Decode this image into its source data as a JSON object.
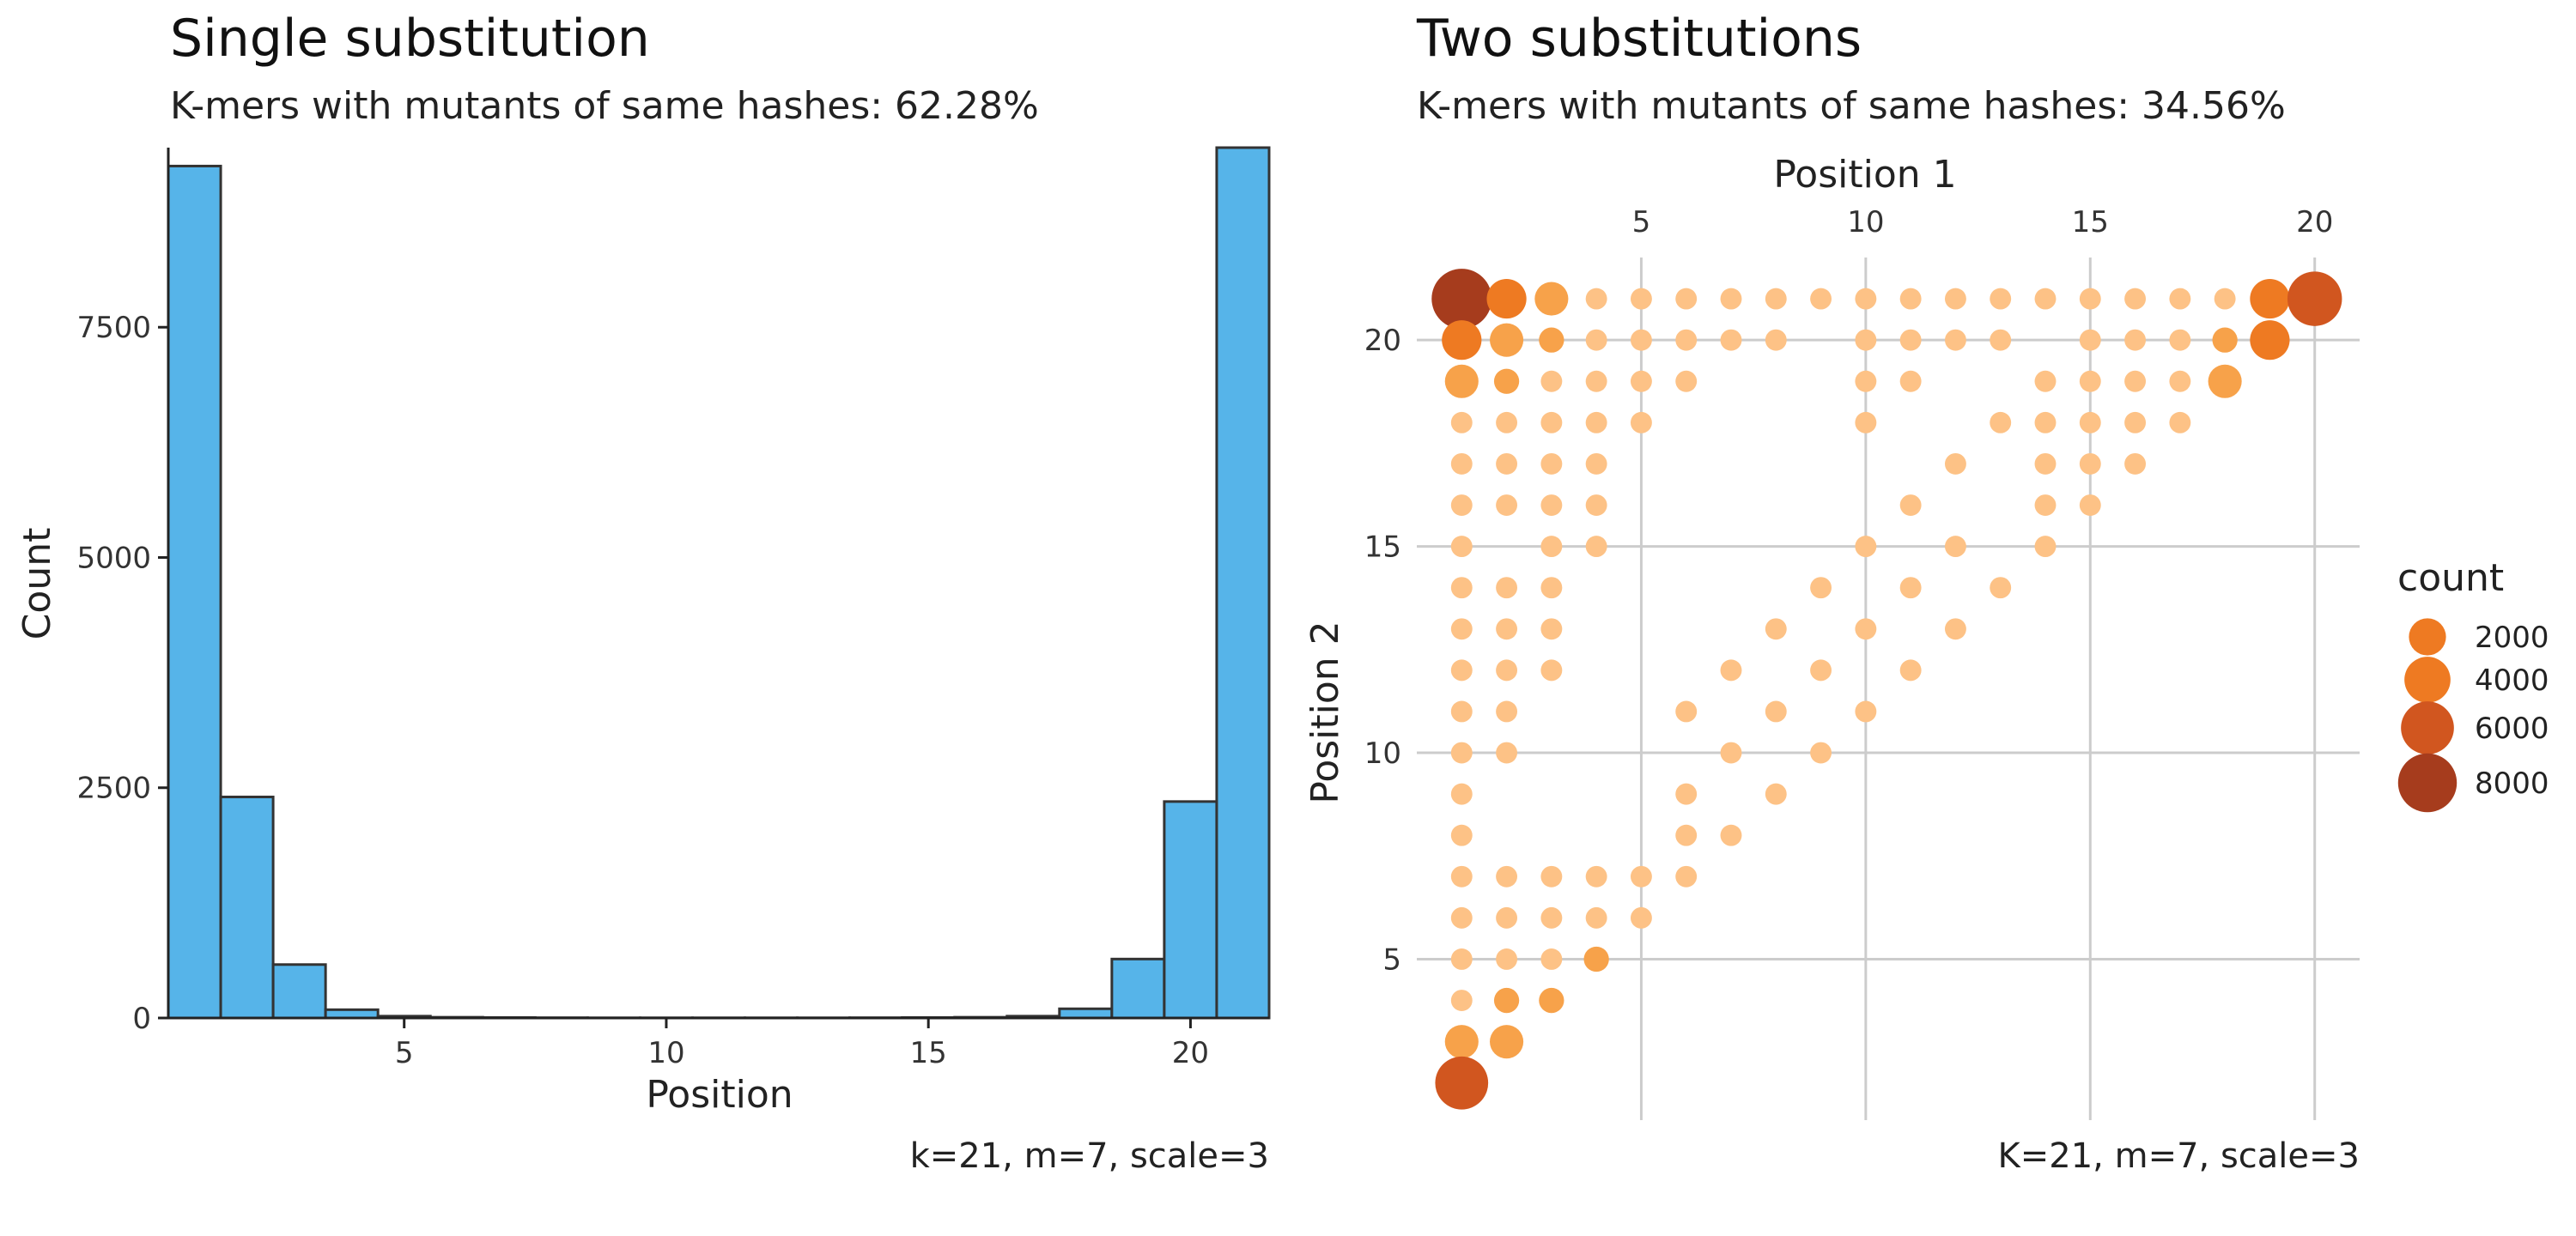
{
  "chart_data": [
    {
      "type": "bar",
      "title": "Single substitution",
      "subtitle": "K-mers with mutants of same hashes: 62.28%",
      "xlabel": "Position",
      "ylabel": "Count",
      "caption": "k=21, m=7, scale=3",
      "x": [
        1,
        2,
        3,
        4,
        5,
        6,
        7,
        8,
        9,
        10,
        11,
        12,
        13,
        14,
        15,
        16,
        17,
        18,
        19,
        20,
        21
      ],
      "values": [
        9250,
        2400,
        580,
        90,
        20,
        8,
        5,
        3,
        2,
        2,
        2,
        2,
        2,
        3,
        5,
        8,
        20,
        100,
        640,
        2350,
        9450
      ],
      "xticks": [
        5,
        10,
        15,
        20
      ],
      "yticks": [
        0,
        2500,
        5000,
        7500
      ],
      "xlim": [
        0.5,
        21.5
      ],
      "ylim": [
        0,
        9450
      ],
      "bar_color": "#56B4E9",
      "bar_edge": "#333333"
    },
    {
      "type": "scatter",
      "title": "Two substitutions",
      "subtitle": "K-mers with mutants of same hashes: 34.56%",
      "xlabel": "Position 1",
      "ylabel": "Position 2",
      "caption": "K=21, m=7, scale=3",
      "xticks": [
        5,
        10,
        15,
        20
      ],
      "yticks": [
        5,
        10,
        15,
        20
      ],
      "xlim": [
        0,
        21
      ],
      "ylim": [
        1.1,
        22
      ],
      "x_axis_position": "top",
      "grid": true,
      "legend": {
        "title": "count",
        "position": "right",
        "entries": [
          {
            "label": "2000",
            "value": 2000
          },
          {
            "label": "4000",
            "value": 4000
          },
          {
            "label": "6000",
            "value": 6000
          },
          {
            "label": "8000",
            "value": 8000
          }
        ]
      },
      "color_scale": [
        "#FDC286",
        "#F7A24A",
        "#EE7A22",
        "#D1561F",
        "#A63C1D"
      ],
      "points": [
        [
          1,
          21,
          8500
        ],
        [
          2,
          21,
          2500
        ],
        [
          3,
          21,
          1400
        ],
        [
          4,
          21,
          150
        ],
        [
          5,
          21,
          150
        ],
        [
          6,
          21,
          150
        ],
        [
          7,
          21,
          150
        ],
        [
          8,
          21,
          150
        ],
        [
          9,
          21,
          150
        ],
        [
          10,
          21,
          150
        ],
        [
          11,
          21,
          150
        ],
        [
          12,
          21,
          150
        ],
        [
          13,
          21,
          150
        ],
        [
          14,
          21,
          150
        ],
        [
          15,
          21,
          150
        ],
        [
          16,
          21,
          150
        ],
        [
          17,
          21,
          150
        ],
        [
          18,
          21,
          150
        ],
        [
          19,
          21,
          2500
        ],
        [
          20,
          21,
          6500
        ],
        [
          1,
          20,
          2500
        ],
        [
          2,
          20,
          1400
        ],
        [
          3,
          20,
          400
        ],
        [
          4,
          20,
          150
        ],
        [
          5,
          20,
          150
        ],
        [
          6,
          20,
          150
        ],
        [
          7,
          20,
          150
        ],
        [
          8,
          20,
          150
        ],
        [
          10,
          20,
          150
        ],
        [
          11,
          20,
          150
        ],
        [
          12,
          20,
          150
        ],
        [
          13,
          20,
          150
        ],
        [
          15,
          20,
          150
        ],
        [
          16,
          20,
          150
        ],
        [
          17,
          20,
          150
        ],
        [
          18,
          20,
          400
        ],
        [
          19,
          20,
          2500
        ],
        [
          1,
          19,
          1400
        ],
        [
          2,
          19,
          400
        ],
        [
          3,
          19,
          150
        ],
        [
          4,
          19,
          150
        ],
        [
          5,
          19,
          150
        ],
        [
          6,
          19,
          150
        ],
        [
          10,
          19,
          150
        ],
        [
          11,
          19,
          150
        ],
        [
          14,
          19,
          150
        ],
        [
          15,
          19,
          150
        ],
        [
          16,
          19,
          150
        ],
        [
          17,
          19,
          150
        ],
        [
          18,
          19,
          1400
        ],
        [
          1,
          18,
          150
        ],
        [
          2,
          18,
          150
        ],
        [
          3,
          18,
          150
        ],
        [
          4,
          18,
          150
        ],
        [
          5,
          18,
          150
        ],
        [
          10,
          18,
          150
        ],
        [
          13,
          18,
          150
        ],
        [
          14,
          18,
          150
        ],
        [
          15,
          18,
          150
        ],
        [
          16,
          18,
          150
        ],
        [
          17,
          18,
          150
        ],
        [
          1,
          17,
          150
        ],
        [
          2,
          17,
          150
        ],
        [
          3,
          17,
          150
        ],
        [
          4,
          17,
          150
        ],
        [
          12,
          17,
          150
        ],
        [
          14,
          17,
          150
        ],
        [
          15,
          17,
          150
        ],
        [
          16,
          17,
          150
        ],
        [
          1,
          16,
          150
        ],
        [
          2,
          16,
          150
        ],
        [
          3,
          16,
          150
        ],
        [
          4,
          16,
          150
        ],
        [
          11,
          16,
          150
        ],
        [
          14,
          16,
          150
        ],
        [
          15,
          16,
          150
        ],
        [
          1,
          15,
          150
        ],
        [
          3,
          15,
          150
        ],
        [
          4,
          15,
          150
        ],
        [
          10,
          15,
          150
        ],
        [
          12,
          15,
          150
        ],
        [
          14,
          15,
          150
        ],
        [
          1,
          14,
          150
        ],
        [
          2,
          14,
          150
        ],
        [
          3,
          14,
          150
        ],
        [
          9,
          14,
          150
        ],
        [
          11,
          14,
          150
        ],
        [
          13,
          14,
          150
        ],
        [
          1,
          13,
          150
        ],
        [
          2,
          13,
          150
        ],
        [
          3,
          13,
          150
        ],
        [
          8,
          13,
          150
        ],
        [
          10,
          13,
          150
        ],
        [
          12,
          13,
          150
        ],
        [
          1,
          12,
          150
        ],
        [
          2,
          12,
          150
        ],
        [
          3,
          12,
          150
        ],
        [
          7,
          12,
          150
        ],
        [
          9,
          12,
          150
        ],
        [
          11,
          12,
          150
        ],
        [
          1,
          11,
          150
        ],
        [
          2,
          11,
          150
        ],
        [
          6,
          11,
          150
        ],
        [
          8,
          11,
          150
        ],
        [
          10,
          11,
          150
        ],
        [
          1,
          10,
          150
        ],
        [
          2,
          10,
          150
        ],
        [
          7,
          10,
          150
        ],
        [
          9,
          10,
          150
        ],
        [
          1,
          9,
          150
        ],
        [
          6,
          9,
          150
        ],
        [
          8,
          9,
          150
        ],
        [
          1,
          8,
          150
        ],
        [
          6,
          8,
          150
        ],
        [
          7,
          8,
          150
        ],
        [
          1,
          7,
          150
        ],
        [
          2,
          7,
          150
        ],
        [
          3,
          7,
          150
        ],
        [
          4,
          7,
          150
        ],
        [
          5,
          7,
          150
        ],
        [
          6,
          7,
          150
        ],
        [
          1,
          6,
          150
        ],
        [
          2,
          6,
          150
        ],
        [
          3,
          6,
          150
        ],
        [
          4,
          6,
          150
        ],
        [
          5,
          6,
          150
        ],
        [
          1,
          5,
          150
        ],
        [
          2,
          5,
          150
        ],
        [
          3,
          5,
          150
        ],
        [
          4,
          5,
          400
        ],
        [
          1,
          4,
          150
        ],
        [
          2,
          4,
          400
        ],
        [
          3,
          4,
          400
        ],
        [
          1,
          3,
          1400
        ],
        [
          2,
          3,
          1400
        ],
        [
          1,
          2,
          6000
        ]
      ]
    }
  ]
}
